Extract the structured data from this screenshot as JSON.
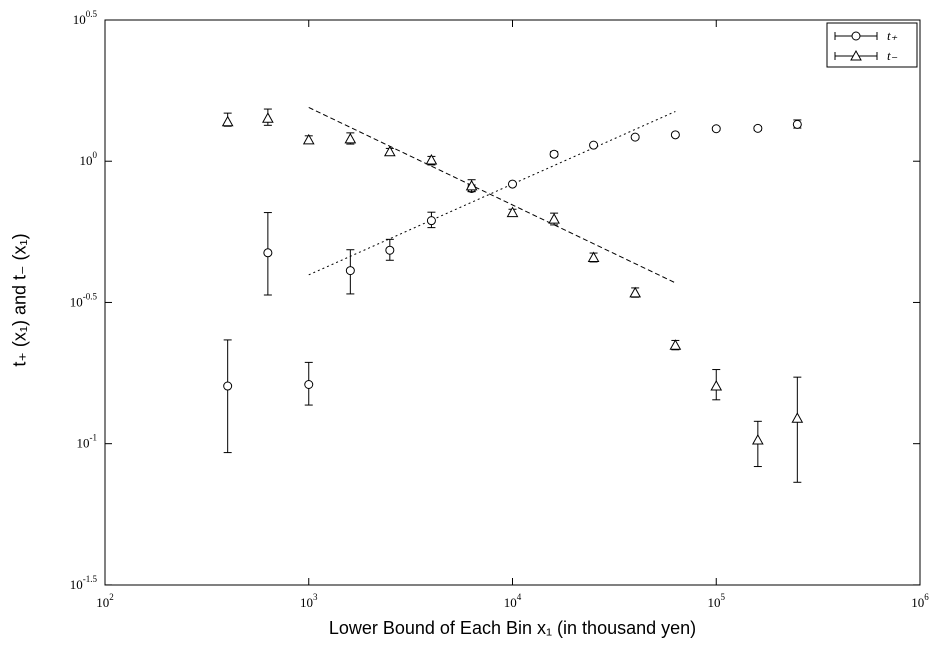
{
  "chart_data": {
    "type": "scatter",
    "title": "",
    "xlabel": "Lower Bound of Each Bin x₁ (in thousand yen)",
    "ylabel": "t₊ (x₁)  and  t₋ (x₁)",
    "xscale": "log",
    "yscale": "log",
    "xlim": [
      100,
      1000000
    ],
    "ylim": [
      0.0316,
      3.162
    ],
    "x_tick_labels": [
      {
        "base": "10",
        "exp": "2"
      },
      {
        "base": "10",
        "exp": "3"
      },
      {
        "base": "10",
        "exp": "4"
      },
      {
        "base": "10",
        "exp": "5"
      },
      {
        "base": "10",
        "exp": "6"
      }
    ],
    "y_tick_labels": [
      {
        "base": "10",
        "exp": "0.5"
      },
      {
        "base": "10",
        "exp": "0"
      },
      {
        "base": "10",
        "exp": "-0.5"
      },
      {
        "base": "10",
        "exp": "-1"
      },
      {
        "base": "10",
        "exp": "-1.5"
      }
    ],
    "legend_position": "top-right",
    "grid": false,
    "series": [
      {
        "name": "t₊",
        "marker": "circle",
        "points": [
          {
            "x": 400,
            "y": 0.16,
            "lo": 0.093,
            "hi": 0.233
          },
          {
            "x": 630,
            "y": 0.474,
            "lo": 0.336,
            "hi": 0.658
          },
          {
            "x": 1000,
            "y": 0.162,
            "lo": 0.137,
            "hi": 0.194
          },
          {
            "x": 1600,
            "y": 0.41,
            "lo": 0.339,
            "hi": 0.486
          },
          {
            "x": 2500,
            "y": 0.484,
            "lo": 0.446,
            "hi": 0.529
          },
          {
            "x": 4000,
            "y": 0.616,
            "lo": 0.582,
            "hi": 0.66
          },
          {
            "x": 6300,
            "y": 0.801,
            "lo": 0.782,
            "hi": 0.824
          },
          {
            "x": 10000,
            "y": 0.83,
            "lo": 0.821,
            "hi": 0.839
          },
          {
            "x": 16000,
            "y": 1.059,
            "lo": 1.039,
            "hi": 1.081
          },
          {
            "x": 25000,
            "y": 1.14,
            "lo": 1.125,
            "hi": 1.155
          },
          {
            "x": 40000,
            "y": 1.217,
            "lo": 1.201,
            "hi": 1.233
          },
          {
            "x": 63000,
            "y": 1.24,
            "lo": 1.223,
            "hi": 1.257
          },
          {
            "x": 100000,
            "y": 1.303,
            "lo": 1.286,
            "hi": 1.321
          },
          {
            "x": 160000,
            "y": 1.307,
            "lo": 1.285,
            "hi": 1.328
          },
          {
            "x": 250000,
            "y": 1.35,
            "lo": 1.31,
            "hi": 1.4
          }
        ]
      },
      {
        "name": "t₋",
        "marker": "triangle",
        "points": [
          {
            "x": 400,
            "y": 1.38,
            "lo": 1.33,
            "hi": 1.48
          },
          {
            "x": 630,
            "y": 1.42,
            "lo": 1.34,
            "hi": 1.53
          },
          {
            "x": 1000,
            "y": 1.19,
            "lo": 1.16,
            "hi": 1.23
          },
          {
            "x": 1600,
            "y": 1.2,
            "lo": 1.15,
            "hi": 1.26
          },
          {
            "x": 2500,
            "y": 1.08,
            "lo": 1.05,
            "hi": 1.11
          },
          {
            "x": 4000,
            "y": 1.01,
            "lo": 0.97,
            "hi": 1.04
          },
          {
            "x": 6300,
            "y": 0.818,
            "lo": 0.78,
            "hi": 0.86
          },
          {
            "x": 10000,
            "y": 0.658,
            "lo": 0.64,
            "hi": 0.676
          },
          {
            "x": 16000,
            "y": 0.624,
            "lo": 0.595,
            "hi": 0.655
          },
          {
            "x": 25000,
            "y": 0.456,
            "lo": 0.44,
            "hi": 0.473
          },
          {
            "x": 40000,
            "y": 0.342,
            "lo": 0.33,
            "hi": 0.356
          },
          {
            "x": 63000,
            "y": 0.223,
            "lo": 0.215,
            "hi": 0.232
          },
          {
            "x": 100000,
            "y": 0.16,
            "lo": 0.143,
            "hi": 0.183
          },
          {
            "x": 160000,
            "y": 0.103,
            "lo": 0.083,
            "hi": 0.12
          },
          {
            "x": 250000,
            "y": 0.123,
            "lo": 0.073,
            "hi": 0.172
          }
        ]
      }
    ],
    "fit_lines": [
      {
        "style": "dotted",
        "from": {
          "x": 1000,
          "y": 0.396
        },
        "to": {
          "x": 63000,
          "y": 1.5
        }
      },
      {
        "style": "dashed",
        "from": {
          "x": 1000,
          "y": 1.55
        },
        "to": {
          "x": 63000,
          "y": 0.371
        }
      }
    ]
  }
}
